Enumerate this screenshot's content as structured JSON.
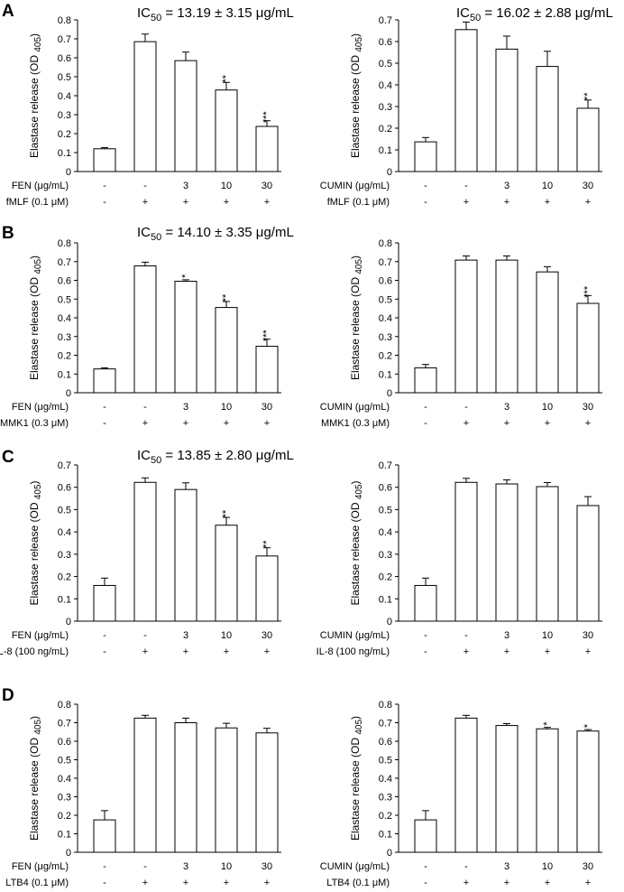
{
  "figure": {
    "row_letters": [
      "A",
      "B",
      "C",
      "D"
    ],
    "ic50_labels": [
      {
        "prefix": "IC",
        "sub": "50",
        "value": " = 13.19 ± 3.15 μg/mL"
      },
      {
        "prefix": "IC",
        "sub": "50",
        "value": " = 16.02 ± 2.88 μg/mL"
      },
      {
        "prefix": "IC",
        "sub": "50",
        "value": " = 14.10 ± 3.35 μg/mL"
      },
      {
        "prefix": "IC",
        "sub": "50",
        "value": " = 13.85 ± 2.80 μg/mL"
      }
    ]
  },
  "chart_data": [
    {
      "id": "A-left",
      "type": "bar",
      "row": "A",
      "ylabel": {
        "main": "Elastase release (OD ",
        "sub": "405",
        "end": ")"
      },
      "ylim": [
        0,
        0.8
      ],
      "yticks": [
        "0",
        "0.1",
        "0.2",
        "0.3",
        "0.4",
        "0.5",
        "0.6",
        "0.7",
        "0.8"
      ],
      "values": [
        0.12,
        0.685,
        0.585,
        0.43,
        0.238
      ],
      "errors": [
        0.006,
        0.04,
        0.045,
        0.04,
        0.03
      ],
      "significance": [
        "",
        "",
        "",
        "**",
        "***"
      ],
      "treatment_rows": [
        {
          "label": "FEN (μg/mL)",
          "values": [
            "-",
            "-",
            "3",
            "10",
            "30"
          ]
        },
        {
          "label": "fMLF (0.1 μM)",
          "values": [
            "-",
            "+",
            "+",
            "+",
            "+"
          ]
        }
      ]
    },
    {
      "id": "A-right",
      "type": "bar",
      "row": "A",
      "ylabel": {
        "main": "Elastase release (OD ",
        "sub": "405",
        "end": ")"
      },
      "ylim": [
        0,
        0.7
      ],
      "yticks": [
        "0",
        "0.1",
        "0.2",
        "0.3",
        "0.4",
        "0.5",
        "0.6",
        "0.7"
      ],
      "values": [
        0.137,
        0.655,
        0.565,
        0.485,
        0.292
      ],
      "errors": [
        0.02,
        0.035,
        0.06,
        0.07,
        0.038
      ],
      "significance": [
        "",
        "",
        "",
        "",
        "**"
      ],
      "treatment_rows": [
        {
          "label": "CUMIN (μg/mL)",
          "values": [
            "-",
            "-",
            "3",
            "10",
            "30"
          ]
        },
        {
          "label": "fMLF (0.1 μM)",
          "values": [
            "-",
            "+",
            "+",
            "+",
            "+"
          ]
        }
      ]
    },
    {
      "id": "B-left",
      "type": "bar",
      "row": "B",
      "ylabel": {
        "main": "Elastase release (OD ",
        "sub": "405",
        "end": ")"
      },
      "ylim": [
        0,
        0.8
      ],
      "yticks": [
        "0",
        "0.1",
        "0.2",
        "0.3",
        "0.4",
        "0.5",
        "0.6",
        "0.7",
        "0.8"
      ],
      "values": [
        0.127,
        0.677,
        0.595,
        0.455,
        0.248
      ],
      "errors": [
        0.006,
        0.02,
        0.008,
        0.032,
        0.038
      ],
      "significance": [
        "",
        "",
        "*",
        "**",
        "***"
      ],
      "treatment_rows": [
        {
          "label": "FEN (μg/mL)",
          "values": [
            "-",
            "-",
            "3",
            "10",
            "30"
          ]
        },
        {
          "label": "MMK1 (0.3 μM)",
          "values": [
            "-",
            "+",
            "+",
            "+",
            "+"
          ]
        }
      ]
    },
    {
      "id": "B-right",
      "type": "bar",
      "row": "B",
      "ylabel": {
        "main": "Elastase release (OD ",
        "sub": "405",
        "end": ")"
      },
      "ylim": [
        0,
        0.8
      ],
      "yticks": [
        "0",
        "0.1",
        "0.2",
        "0.3",
        "0.4",
        "0.5",
        "0.6",
        "0.7",
        "0.8"
      ],
      "values": [
        0.133,
        0.708,
        0.708,
        0.645,
        0.477
      ],
      "errors": [
        0.018,
        0.022,
        0.022,
        0.028,
        0.042
      ],
      "significance": [
        "",
        "",
        "",
        "",
        "***"
      ],
      "treatment_rows": [
        {
          "label": "CUMIN (μg/mL)",
          "values": [
            "-",
            "-",
            "3",
            "10",
            "30"
          ]
        },
        {
          "label": "MMK1 (0.3 μM)",
          "values": [
            "-",
            "+",
            "+",
            "+",
            "+"
          ]
        }
      ]
    },
    {
      "id": "C-left",
      "type": "bar",
      "row": "C",
      "ylabel": {
        "main": "Elastase release (OD ",
        "sub": "405",
        "end": ")"
      },
      "ylim": [
        0,
        0.7
      ],
      "yticks": [
        "0",
        "0.1",
        "0.2",
        "0.3",
        "0.4",
        "0.5",
        "0.6",
        "0.7"
      ],
      "values": [
        0.16,
        0.622,
        0.59,
        0.43,
        0.292
      ],
      "errors": [
        0.033,
        0.02,
        0.03,
        0.035,
        0.037
      ],
      "significance": [
        "",
        "",
        "",
        "**",
        "**"
      ],
      "treatment_rows": [
        {
          "label": "FEN (μg/mL)",
          "values": [
            "-",
            "-",
            "3",
            "10",
            "30"
          ]
        },
        {
          "label": "IL-8 (100 ng/mL)",
          "values": [
            "-",
            "+",
            "+",
            "+",
            "+"
          ]
        }
      ]
    },
    {
      "id": "C-right",
      "type": "bar",
      "row": "C",
      "ylabel": {
        "main": "Elastase release (OD ",
        "sub": "405",
        "end": ")"
      },
      "ylim": [
        0,
        0.7
      ],
      "yticks": [
        "0",
        "0.1",
        "0.2",
        "0.3",
        "0.4",
        "0.5",
        "0.6",
        "0.7"
      ],
      "values": [
        0.16,
        0.622,
        0.615,
        0.603,
        0.518
      ],
      "errors": [
        0.033,
        0.018,
        0.018,
        0.018,
        0.04
      ],
      "significance": [
        "",
        "",
        "",
        "",
        ""
      ],
      "treatment_rows": [
        {
          "label": "CUMIN (μg/mL)",
          "values": [
            "-",
            "-",
            "3",
            "10",
            "30"
          ]
        },
        {
          "label": "IL-8 (100 ng/mL)",
          "values": [
            "-",
            "+",
            "+",
            "+",
            "+"
          ]
        }
      ]
    },
    {
      "id": "D-left",
      "type": "bar",
      "row": "D",
      "ylabel": {
        "main": "Elastase release (OD ",
        "sub": "405",
        "end": ")"
      },
      "ylim": [
        0,
        0.8
      ],
      "yticks": [
        "0",
        "0.1",
        "0.2",
        "0.3",
        "0.4",
        "0.5",
        "0.6",
        "0.7",
        "0.8"
      ],
      "values": [
        0.175,
        0.725,
        0.7,
        0.672,
        0.645
      ],
      "errors": [
        0.05,
        0.015,
        0.025,
        0.025,
        0.025
      ],
      "significance": [
        "",
        "",
        "",
        "",
        ""
      ],
      "treatment_rows": [
        {
          "label": "FEN (μg/mL)",
          "values": [
            "-",
            "-",
            "3",
            "10",
            "30"
          ]
        },
        {
          "label": "LTB4 (0.1 μM)",
          "values": [
            "-",
            "+",
            "+",
            "+",
            "+"
          ]
        }
      ]
    },
    {
      "id": "D-right",
      "type": "bar",
      "row": "D",
      "ylabel": {
        "main": "Elastase release (OD ",
        "sub": "405",
        "end": ")"
      },
      "ylim": [
        0,
        0.8
      ],
      "yticks": [
        "0",
        "0.1",
        "0.2",
        "0.3",
        "0.4",
        "0.5",
        "0.6",
        "0.7",
        "0.8"
      ],
      "values": [
        0.175,
        0.725,
        0.685,
        0.667,
        0.655
      ],
      "errors": [
        0.05,
        0.015,
        0.01,
        0.008,
        0.008
      ],
      "significance": [
        "",
        "",
        "",
        "*",
        "*"
      ],
      "treatment_rows": [
        {
          "label": "CUMIN (μg/mL)",
          "values": [
            "-",
            "-",
            "3",
            "10",
            "30"
          ]
        },
        {
          "label": "LTB4 (0.1 μM)",
          "values": [
            "-",
            "+",
            "+",
            "+",
            "+"
          ]
        }
      ]
    }
  ]
}
